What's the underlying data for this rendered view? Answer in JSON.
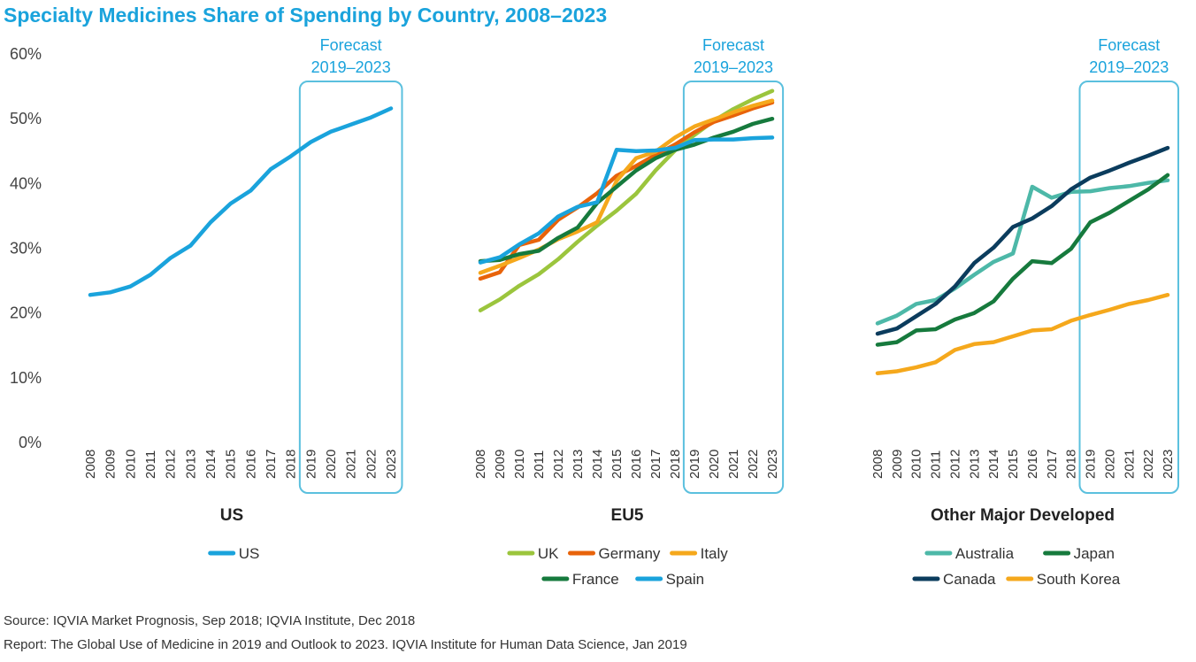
{
  "title": "Specialty Medicines Share of Spending by Country, 2008–2023",
  "footer": {
    "source": "Source: IQVIA Market Prognosis, Sep 2018; IQVIA Institute, Dec 2018",
    "report": "Report: The Global Use of Medicine in 2019 and Outlook to 2023. IQVIA Institute for Human Data Science, Jan 2019"
  },
  "colors": {
    "title": "#1AA3DC",
    "forecast_box": "#5BC0DE",
    "US": "#1AA3DC",
    "UK": "#9BC53D",
    "Germany": "#E8630A",
    "Italy": "#F5A81C",
    "France": "#167A3D",
    "Spain": "#1AA3DC",
    "Australia": "#4DB8A8",
    "Japan": "#167A3D",
    "Canada": "#0B3C5D",
    "South Korea": "#F5A81C"
  },
  "chart_data": [
    {
      "type": "line",
      "panel_title": "US",
      "forecast_label_1": "Forecast",
      "forecast_label_2": "2019–2023",
      "forecast_range": [
        2019,
        2023
      ],
      "x": [
        2008,
        2009,
        2010,
        2011,
        2012,
        2013,
        2014,
        2015,
        2016,
        2017,
        2018,
        2019,
        2020,
        2021,
        2022,
        2023
      ],
      "y_ticks": [
        "0%",
        "10%",
        "20%",
        "30%",
        "40%",
        "50%",
        "60%"
      ],
      "ylim": [
        0,
        60
      ],
      "series": [
        {
          "name": "US",
          "values": [
            22.8,
            23.2,
            24.1,
            25.9,
            28.5,
            30.4,
            34.0,
            36.9,
            38.9,
            42.2,
            44.2,
            46.4,
            48.0,
            49.1,
            50.2,
            51.6
          ]
        }
      ],
      "legend_rows": [
        [
          "US"
        ]
      ]
    },
    {
      "type": "line",
      "panel_title": "EU5",
      "forecast_label_1": "Forecast",
      "forecast_label_2": "2019–2023",
      "forecast_range": [
        2019,
        2023
      ],
      "x": [
        2008,
        2009,
        2010,
        2011,
        2012,
        2013,
        2014,
        2015,
        2016,
        2017,
        2018,
        2019,
        2020,
        2021,
        2022,
        2023
      ],
      "ylim": [
        0,
        60
      ],
      "series": [
        {
          "name": "UK",
          "values": [
            20.4,
            22.1,
            24.2,
            26.0,
            28.3,
            31.0,
            33.5,
            35.8,
            38.4,
            42.0,
            45.1,
            47.5,
            49.7,
            51.5,
            53.0,
            54.3
          ]
        },
        {
          "name": "Germany",
          "values": [
            25.3,
            26.3,
            30.5,
            31.3,
            34.4,
            36.3,
            38.5,
            41.2,
            42.7,
            44.4,
            46.0,
            47.9,
            49.5,
            50.5,
            51.6,
            52.5
          ]
        },
        {
          "name": "Italy",
          "values": [
            26.2,
            27.3,
            28.5,
            29.8,
            31.4,
            32.6,
            34.0,
            40.4,
            43.9,
            44.9,
            47.1,
            48.8,
            49.9,
            51.0,
            52.0,
            52.8
          ]
        },
        {
          "name": "France",
          "values": [
            28.0,
            28.2,
            29.1,
            29.6,
            31.6,
            33.2,
            37.0,
            39.5,
            42.0,
            43.9,
            45.2,
            46.0,
            47.1,
            48.0,
            49.2,
            50.0
          ]
        },
        {
          "name": "Spain",
          "values": [
            27.8,
            28.6,
            30.6,
            32.3,
            34.9,
            36.4,
            37.1,
            45.2,
            45.0,
            45.1,
            45.5,
            46.7,
            46.8,
            46.8,
            47.0,
            47.1
          ]
        }
      ],
      "legend_rows": [
        [
          "UK",
          "Germany",
          "Italy"
        ],
        [
          "France",
          "Spain"
        ]
      ]
    },
    {
      "type": "line",
      "panel_title": "Other Major Developed",
      "forecast_label_1": "Forecast",
      "forecast_label_2": "2019–2023",
      "forecast_range": [
        2019,
        2023
      ],
      "x": [
        2008,
        2009,
        2010,
        2011,
        2012,
        2013,
        2014,
        2015,
        2016,
        2017,
        2018,
        2019,
        2020,
        2021,
        2022,
        2023
      ],
      "ylim": [
        0,
        60
      ],
      "series": [
        {
          "name": "Australia",
          "values": [
            18.4,
            19.6,
            21.4,
            22.0,
            23.8,
            25.9,
            27.9,
            29.2,
            39.5,
            37.8,
            38.7,
            38.8,
            39.3,
            39.6,
            40.1,
            40.5
          ]
        },
        {
          "name": "Japan",
          "values": [
            15.1,
            15.5,
            17.3,
            17.5,
            19.0,
            20.0,
            21.8,
            25.3,
            28.0,
            27.7,
            29.9,
            34.0,
            35.5,
            37.3,
            39.1,
            41.3
          ]
        },
        {
          "name": "Canada",
          "values": [
            16.8,
            17.6,
            19.5,
            21.4,
            24.1,
            27.7,
            30.1,
            33.3,
            34.6,
            36.5,
            39.1,
            40.9,
            42.0,
            43.2,
            44.3,
            45.5
          ]
        },
        {
          "name": "South Korea",
          "values": [
            10.7,
            11.0,
            11.6,
            12.4,
            14.3,
            15.2,
            15.5,
            16.4,
            17.3,
            17.5,
            18.8,
            19.7,
            20.5,
            21.4,
            22.0,
            22.8
          ]
        }
      ],
      "legend_rows": [
        [
          "Australia",
          "Japan"
        ],
        [
          "Canada",
          "South Korea"
        ]
      ]
    }
  ]
}
